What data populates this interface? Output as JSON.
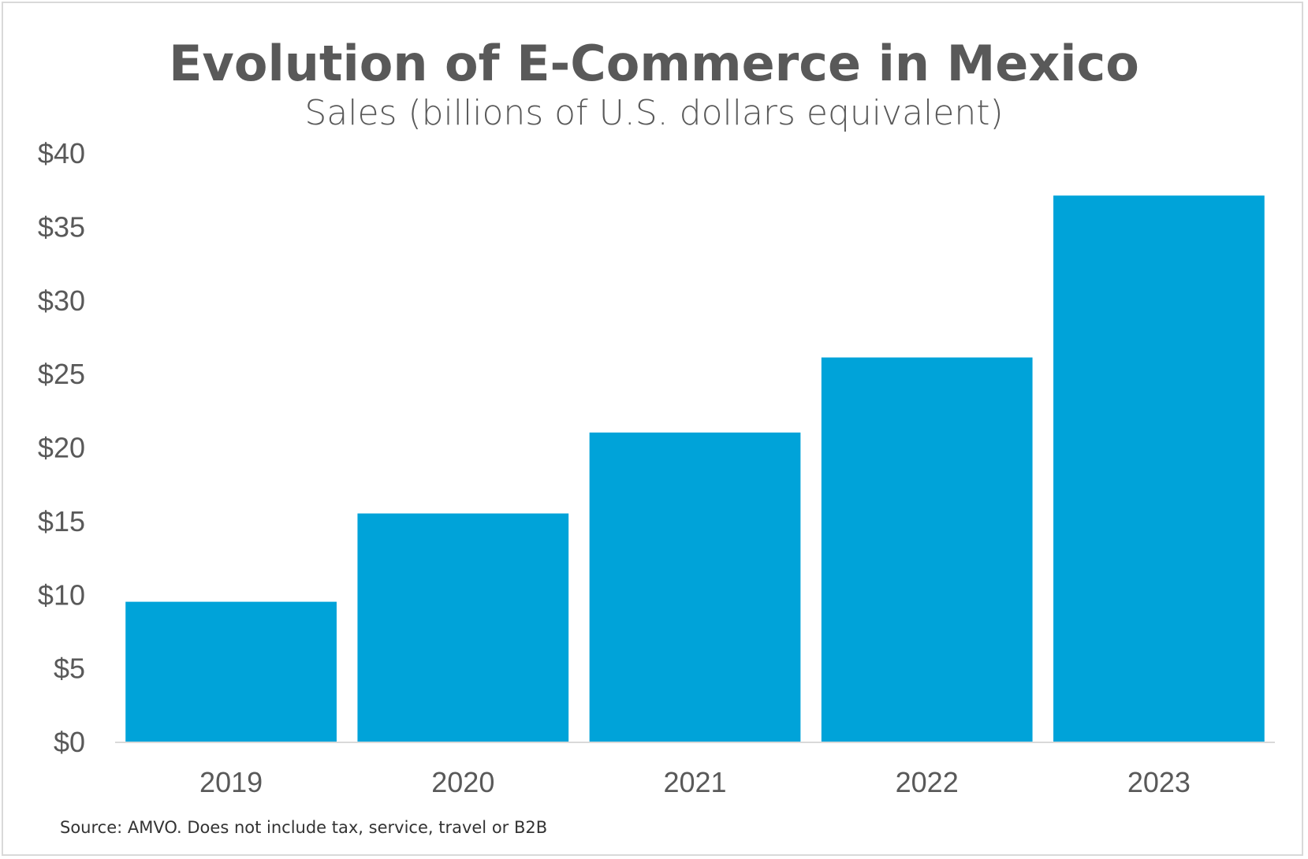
{
  "chart_data": {
    "type": "bar",
    "title": "Evolution of E-Commerce in Mexico",
    "subtitle": "Sales (billions of U.S. dollars equivalent)",
    "categories": [
      "2019",
      "2020",
      "2021",
      "2022",
      "2023"
    ],
    "values": [
      9.5,
      15.5,
      21.0,
      26.1,
      37.1
    ],
    "ylim": [
      0,
      40
    ],
    "yticks": [
      0,
      5,
      10,
      15,
      20,
      25,
      30,
      35,
      40
    ],
    "ytick_labels": [
      "$0",
      "$5",
      "$10",
      "$15",
      "$20",
      "$25",
      "$30",
      "$35",
      "$40"
    ],
    "grid": false,
    "legend": "none",
    "bar_color": "#00a3d9",
    "source": "Source: AMVO. Does not include tax, service, travel or B2B"
  }
}
